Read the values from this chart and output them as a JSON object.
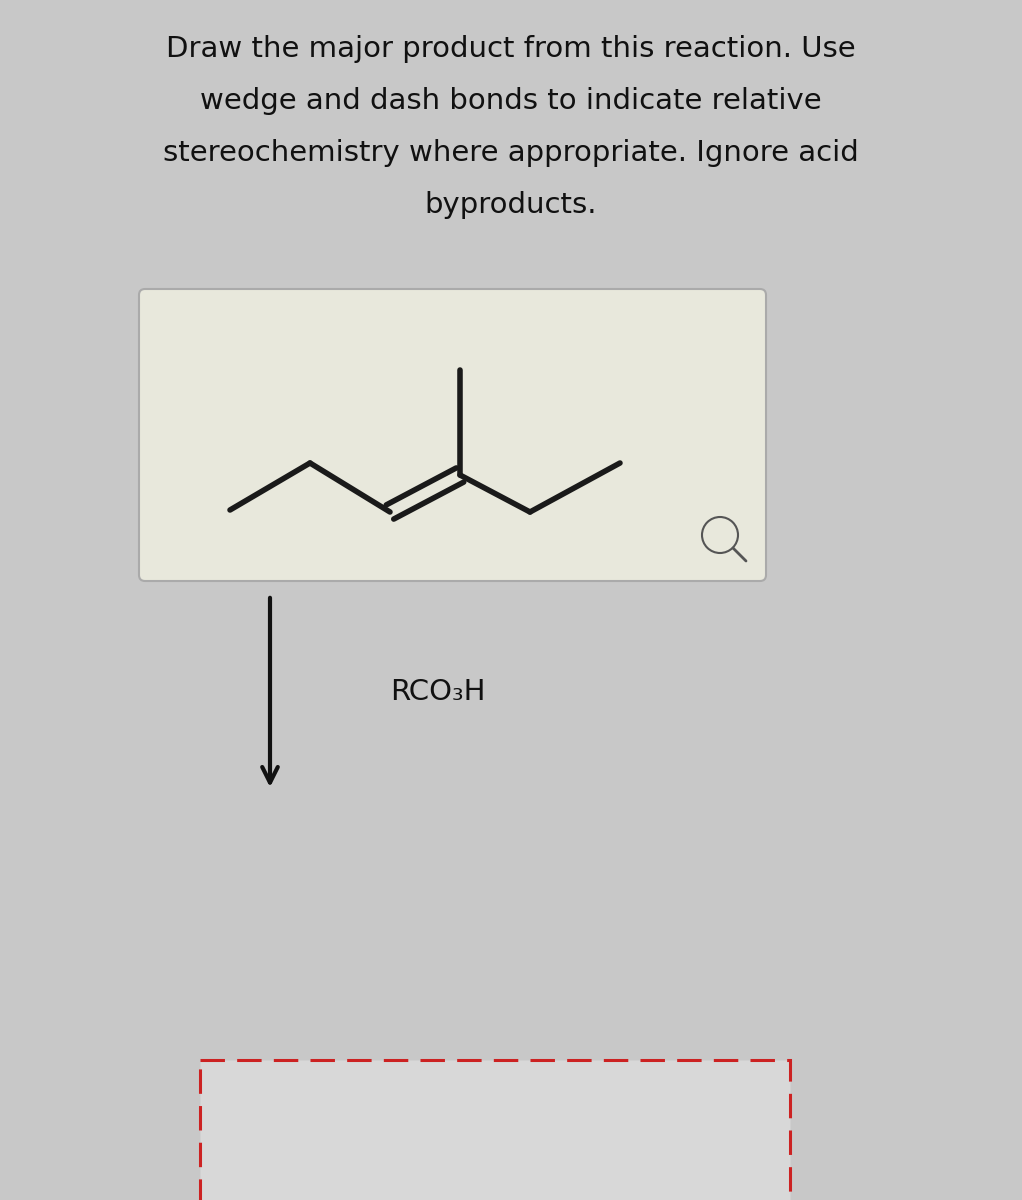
{
  "title_lines": [
    "Draw the major product from this reaction. Use",
    "wedge and dash bonds to indicate relative",
    "stereochemistry where appropriate. Ignore acid",
    "byproducts."
  ],
  "title_fontsize": 21,
  "background_color": "#c8c8c8",
  "box1_facecolor": "#e8e8dc",
  "box1_edgecolor": "#aaaaaa",
  "box2_border_color": "#cc2222",
  "arrow_color": "#111111",
  "reagent_label": "RCO₃H",
  "reagent_fontsize": 21,
  "molecule_color": "#1a1a1a",
  "lw": 4.0
}
